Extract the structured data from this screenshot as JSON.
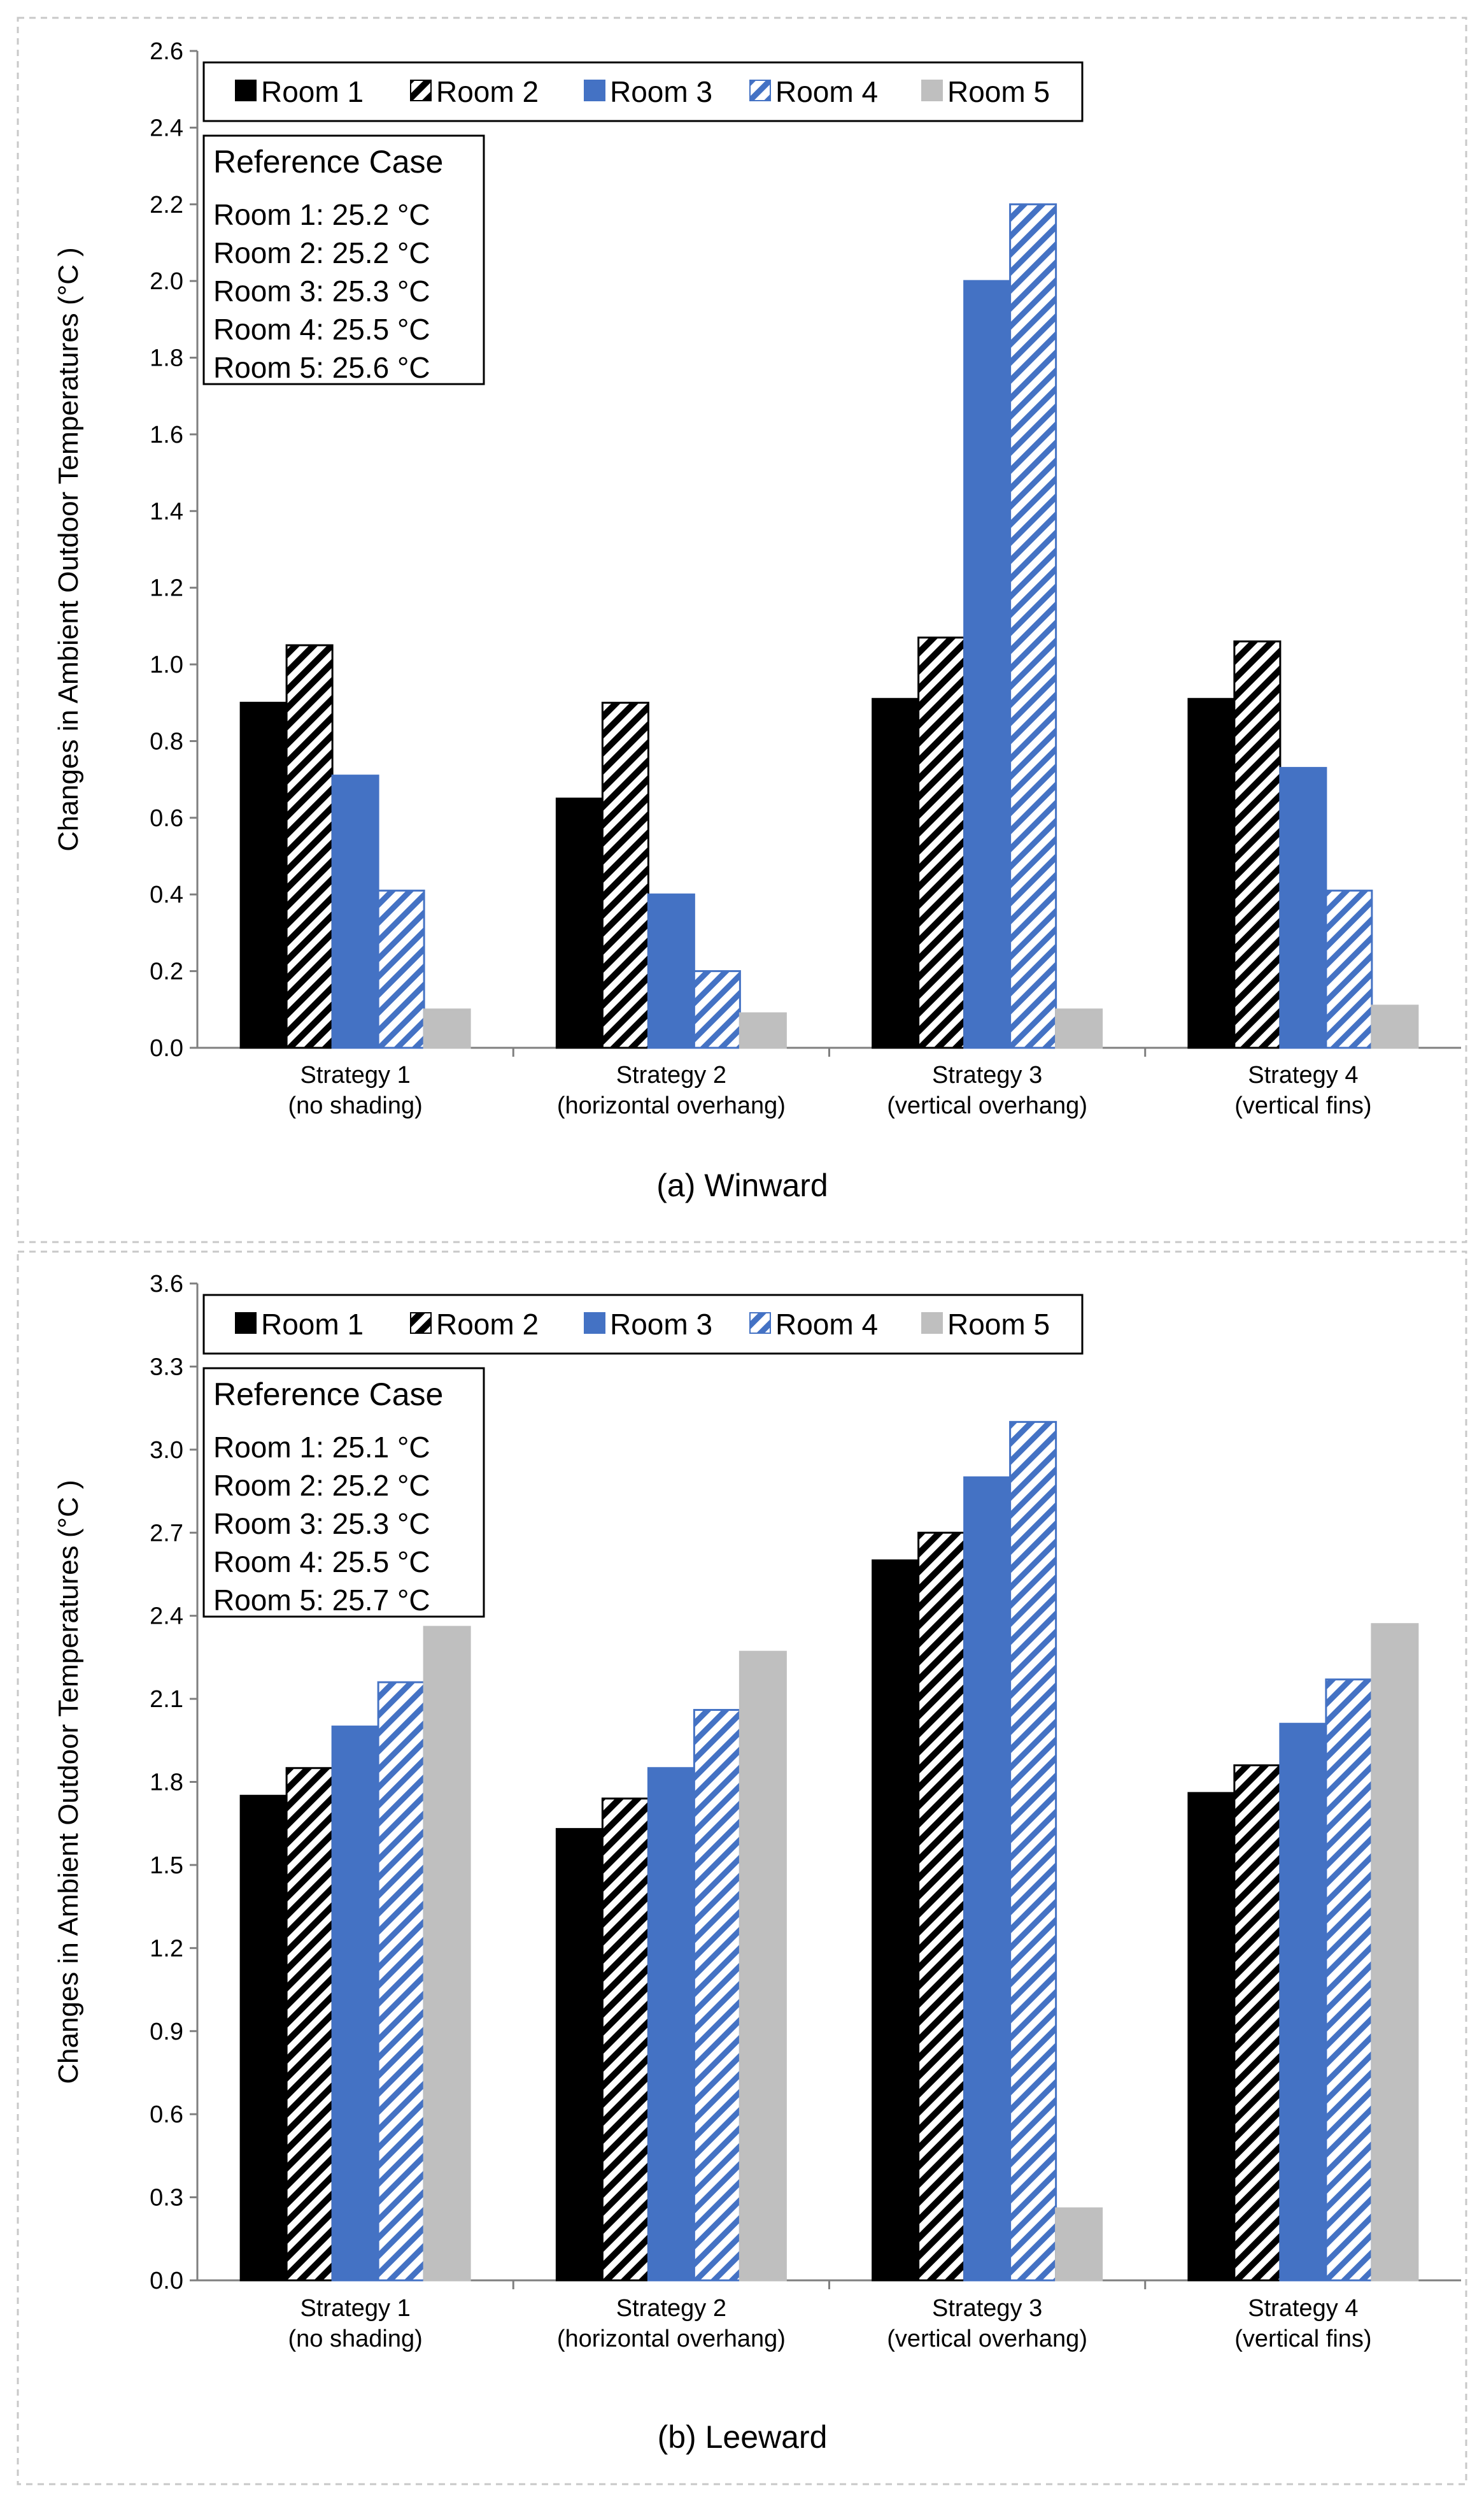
{
  "colors": {
    "room1": "#000000",
    "room2_pattern": "#000000",
    "room3": "#4472c4",
    "room4_pattern": "#4472c4",
    "room5": "#bfbfbf"
  },
  "chart_data": [
    {
      "type": "bar",
      "caption": "(a) Winward",
      "ylabel": "Changes in Ambient Outdoor Temperatures (°C )",
      "categories": [
        [
          "Strategy 1",
          "(no shading)"
        ],
        [
          "Strategy 2",
          "(horizontal overhang)"
        ],
        [
          "Strategy 3",
          "(vertical overhang)"
        ],
        [
          "Strategy 4",
          "(vertical fins)"
        ]
      ],
      "ylim": [
        0,
        2.6
      ],
      "yticks": [
        "0.0",
        "0.2",
        "0.4",
        "0.6",
        "0.8",
        "1.0",
        "1.2",
        "1.4",
        "1.6",
        "1.8",
        "2.0",
        "2.2",
        "2.4",
        "2.6"
      ],
      "series": [
        {
          "name": "Room 1",
          "values": [
            0.9,
            0.65,
            0.91,
            0.91
          ]
        },
        {
          "name": "Room 2",
          "values": [
            1.05,
            0.9,
            1.07,
            1.06
          ]
        },
        {
          "name": "Room 3",
          "values": [
            0.71,
            0.4,
            2.0,
            0.73
          ]
        },
        {
          "name": "Room 4",
          "values": [
            0.41,
            0.2,
            2.2,
            0.41
          ]
        },
        {
          "name": "Room 5",
          "values": [
            0.1,
            0.09,
            0.1,
            0.11
          ]
        }
      ],
      "reference": {
        "title": "Reference Case",
        "lines": [
          "Room 1: 25.2 °C",
          "Room 2: 25.2 °C",
          "Room 3: 25.3 °C",
          "Room 4: 25.5 °C",
          "Room 5: 25.6 °C"
        ]
      },
      "legend_position": "top-left",
      "grid": false
    },
    {
      "type": "bar",
      "caption": "(b) Leeward",
      "ylabel": "Changes in Ambient Outdoor Temperatures (°C )",
      "categories": [
        [
          "Strategy 1",
          "(no shading)"
        ],
        [
          "Strategy 2",
          "(horizontal overhang)"
        ],
        [
          "Strategy 3",
          "(vertical overhang)"
        ],
        [
          "Strategy 4",
          "(vertical fins)"
        ]
      ],
      "ylim": [
        0,
        3.6
      ],
      "yticks": [
        "0.0",
        "0.3",
        "0.6",
        "0.9",
        "1.2",
        "1.5",
        "1.8",
        "2.1",
        "2.4",
        "2.7",
        "3.0",
        "3.3",
        "3.6"
      ],
      "series": [
        {
          "name": "Room 1",
          "values": [
            1.75,
            1.63,
            2.6,
            1.76
          ]
        },
        {
          "name": "Room 2",
          "values": [
            1.85,
            1.74,
            2.7,
            1.86
          ]
        },
        {
          "name": "Room 3",
          "values": [
            2.0,
            1.85,
            2.9,
            2.01
          ]
        },
        {
          "name": "Room 4",
          "values": [
            2.16,
            2.06,
            3.1,
            2.17
          ]
        },
        {
          "name": "Room 5",
          "values": [
            2.36,
            2.27,
            0.26,
            2.37
          ]
        }
      ],
      "reference": {
        "title": "Reference Case",
        "lines": [
          "Room 1: 25.1 °C",
          "Room 2: 25.2 °C",
          "Room 3: 25.3 °C",
          "Room 4: 25.5 °C",
          "Room 5: 25.7 °C"
        ]
      },
      "legend_position": "top-left",
      "grid": false
    }
  ]
}
